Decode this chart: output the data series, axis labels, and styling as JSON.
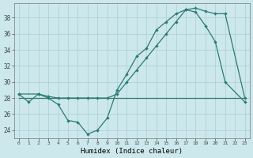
{
  "xlabel": "Humidex (Indice chaleur)",
  "bg_color": "#cce8ec",
  "grid_color": "#aacdd4",
  "line_color": "#2d7a72",
  "xlim": [
    -0.5,
    23.5
  ],
  "ylim": [
    23.0,
    39.8
  ],
  "xtick_labels": [
    "0",
    "1",
    "2",
    "3",
    "4",
    "5",
    "6",
    "7",
    "8",
    "9",
    "10",
    "11",
    "12",
    "13",
    "14",
    "15",
    "16",
    "17",
    "18",
    "19",
    "20",
    "21",
    "22",
    "23"
  ],
  "yticks": [
    24,
    26,
    28,
    30,
    32,
    34,
    36,
    38
  ],
  "line1_x": [
    0,
    1,
    2,
    3,
    4,
    5,
    6,
    7,
    8,
    9,
    10,
    11,
    12,
    13,
    14,
    15,
    16,
    17,
    18,
    19,
    20,
    21,
    23
  ],
  "line1_y": [
    28.5,
    27.5,
    28.5,
    28.0,
    27.2,
    25.2,
    25.0,
    23.5,
    24.0,
    25.5,
    29.0,
    31.0,
    33.2,
    34.2,
    36.5,
    37.5,
    38.5,
    39.0,
    38.7,
    37.0,
    35.0,
    30.0,
    27.5
  ],
  "line2_x": [
    0,
    2,
    3,
    4,
    5,
    6,
    7,
    8,
    9,
    10,
    11,
    12,
    13,
    14,
    15,
    16,
    17,
    18,
    19,
    20,
    21,
    23
  ],
  "line2_y": [
    28.5,
    28.5,
    28.2,
    28.0,
    28.0,
    28.0,
    28.0,
    28.0,
    28.0,
    28.5,
    30.0,
    31.5,
    33.0,
    34.5,
    36.0,
    37.5,
    39.0,
    39.2,
    38.8,
    38.5,
    38.5,
    28.0
  ],
  "line3_x": [
    0,
    23
  ],
  "line3_y": [
    28.0,
    28.0
  ]
}
